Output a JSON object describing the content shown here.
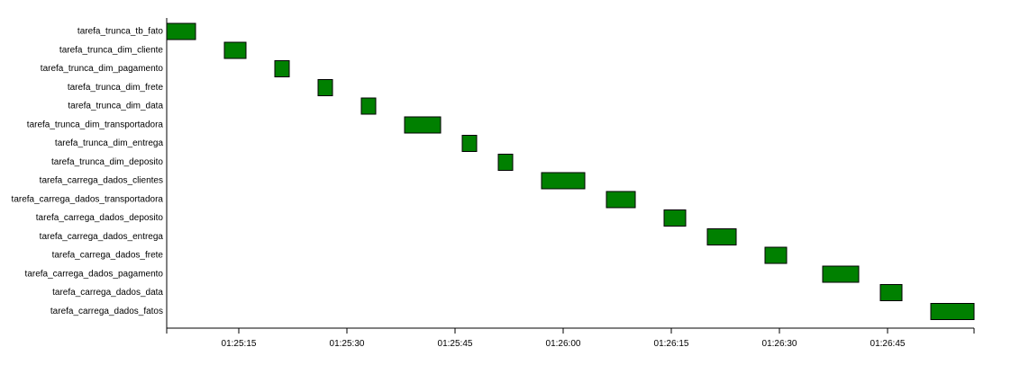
{
  "chart_data": {
    "type": "gantt",
    "title": "",
    "xlabel": "",
    "ylabel": "",
    "colors": {
      "bar_fill": "#008000",
      "bar_stroke": "#000000",
      "axis": "#000000"
    },
    "x_range": [
      "01:25:05",
      "01:26:57"
    ],
    "x_ticks": [
      "01:25:15",
      "01:25:30",
      "01:25:45",
      "01:26:00",
      "01:26:15",
      "01:26:30",
      "01:26:45"
    ],
    "grid": false,
    "legend": "none",
    "tasks": [
      {
        "name": "tarefa_trunca_tb_fato",
        "start": "01:25:05",
        "end": "01:25:09"
      },
      {
        "name": "tarefa_trunca_dim_cliente",
        "start": "01:25:13",
        "end": "01:25:16"
      },
      {
        "name": "tarefa_trunca_dim_pagamento",
        "start": "01:25:20",
        "end": "01:25:22"
      },
      {
        "name": "tarefa_trunca_dim_frete",
        "start": "01:25:26",
        "end": "01:25:28"
      },
      {
        "name": "tarefa_trunca_dim_data",
        "start": "01:25:32",
        "end": "01:25:34"
      },
      {
        "name": "tarefa_trunca_dim_transportadora",
        "start": "01:25:38",
        "end": "01:25:43"
      },
      {
        "name": "tarefa_trunca_dim_entrega",
        "start": "01:25:46",
        "end": "01:25:48"
      },
      {
        "name": "tarefa_trunca_dim_deposito",
        "start": "01:25:51",
        "end": "01:25:53"
      },
      {
        "name": "tarefa_carrega_dados_clientes",
        "start": "01:25:57",
        "end": "01:26:03"
      },
      {
        "name": "tarefa_carrega_dados_transportadora",
        "start": "01:26:06",
        "end": "01:26:10"
      },
      {
        "name": "tarefa_carrega_dados_deposito",
        "start": "01:26:14",
        "end": "01:26:17"
      },
      {
        "name": "tarefa_carrega_dados_entrega",
        "start": "01:26:20",
        "end": "01:26:24"
      },
      {
        "name": "tarefa_carrega_dados_frete",
        "start": "01:26:28",
        "end": "01:26:31"
      },
      {
        "name": "tarefa_carrega_dados_pagamento",
        "start": "01:26:36",
        "end": "01:26:41"
      },
      {
        "name": "tarefa_carrega_dados_data",
        "start": "01:26:44",
        "end": "01:26:47"
      },
      {
        "name": "tarefa_carrega_dados_fatos",
        "start": "01:26:51",
        "end": "01:26:57"
      }
    ]
  }
}
